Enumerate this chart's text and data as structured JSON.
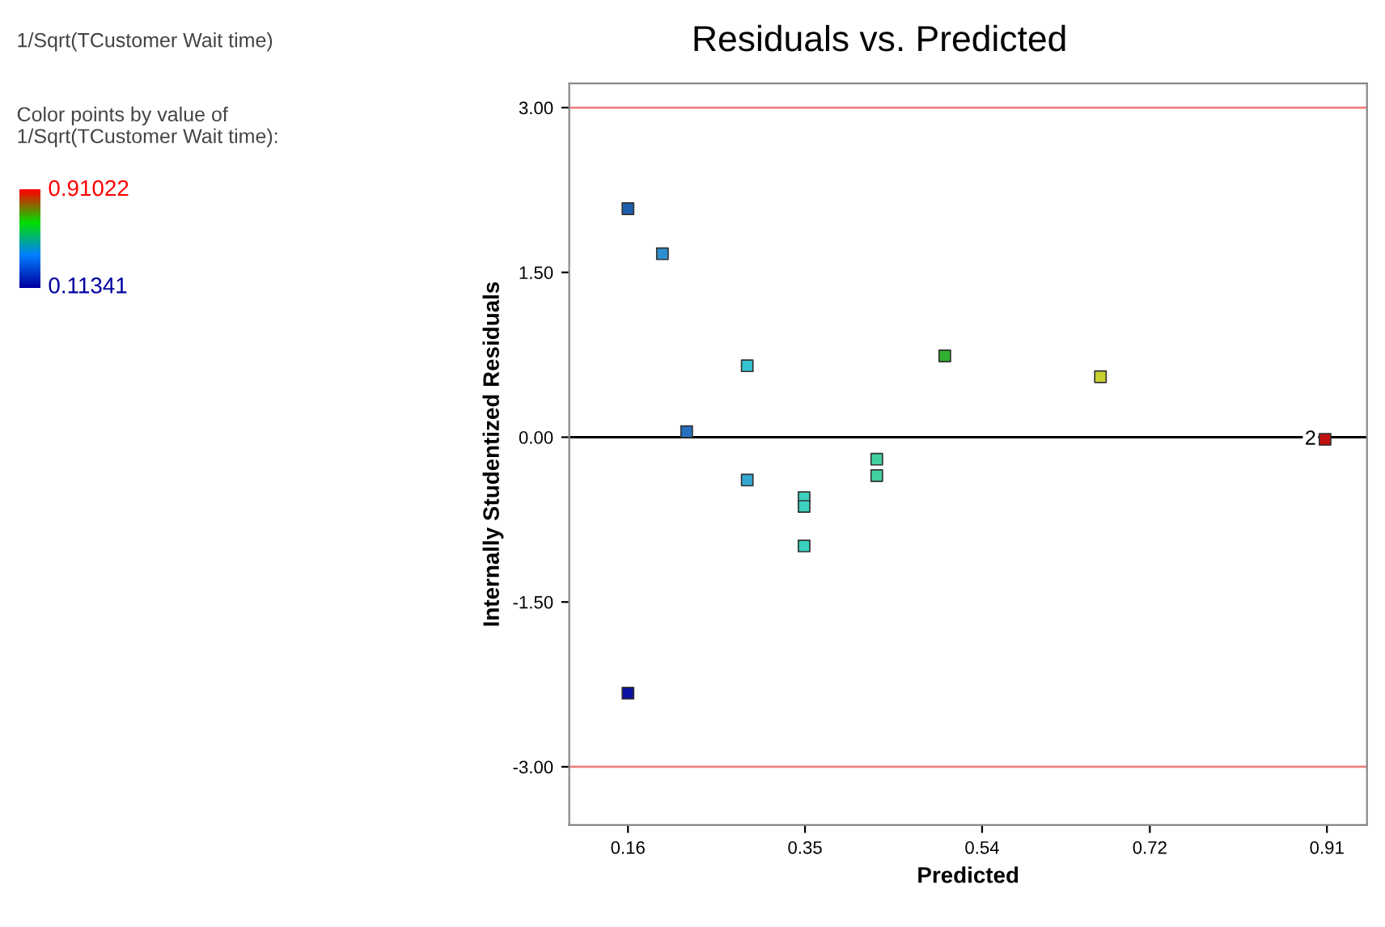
{
  "chart_data": {
    "type": "scatter",
    "title": "Residuals vs. Predicted",
    "xlabel": "Predicted",
    "ylabel": "Internally Studentized Residuals",
    "x": [
      0.16,
      0.197,
      0.223,
      0.288,
      0.288,
      0.349,
      0.349,
      0.349,
      0.427,
      0.427,
      0.5,
      0.667,
      0.908,
      0.16
    ],
    "values": [
      2.08,
      1.67,
      0.05,
      0.65,
      -0.39,
      -0.55,
      -0.63,
      -0.99,
      -0.2,
      -0.35,
      0.74,
      0.55,
      -0.02,
      -2.33
    ],
    "colors": [
      "#1f5fb0",
      "#2d8fcf",
      "#2670c0",
      "#33c3d0",
      "#35a8d0",
      "#3cd0c0",
      "#3cd0c0",
      "#3cd0c0",
      "#40d0a0",
      "#40d0a0",
      "#30b030",
      "#c8d030",
      "#c01010",
      "#0a10a0"
    ],
    "marker": "square",
    "xlim": [
      0.097,
      0.953
    ],
    "xticks": [
      0.16,
      0.35,
      0.54,
      0.72,
      0.91
    ],
    "ylim": [
      -3.53,
      3.22
    ],
    "yticks": [
      {
        "value": -3,
        "label": "-3.00"
      },
      {
        "value": -1.5,
        "label": "-1.50"
      },
      {
        "value": 0,
        "label": "0.00"
      },
      {
        "value": 1.5,
        "label": "1.50"
      },
      {
        "value": 3,
        "label": "3.00"
      }
    ],
    "ref_lines": [
      {
        "axis": "y",
        "value": 3,
        "color": "#f08080"
      },
      {
        "axis": "y",
        "value": -3,
        "color": "#f08080"
      },
      {
        "axis": "y",
        "value": 0,
        "color": "#000000"
      }
    ],
    "clabel": "Color points by value of\n1/Sqrt(TCustomer Wait time):",
    "clim": [
      0.11341,
      0.91022
    ],
    "cticks": [
      0.11341,
      0.91022
    ],
    "annotations": [
      "1/Sqrt(TCustomer Wait time)",
      {
        "text": "2",
        "x": 0.908,
        "y": -0.02
      }
    ],
    "grid": false,
    "legend": false
  }
}
